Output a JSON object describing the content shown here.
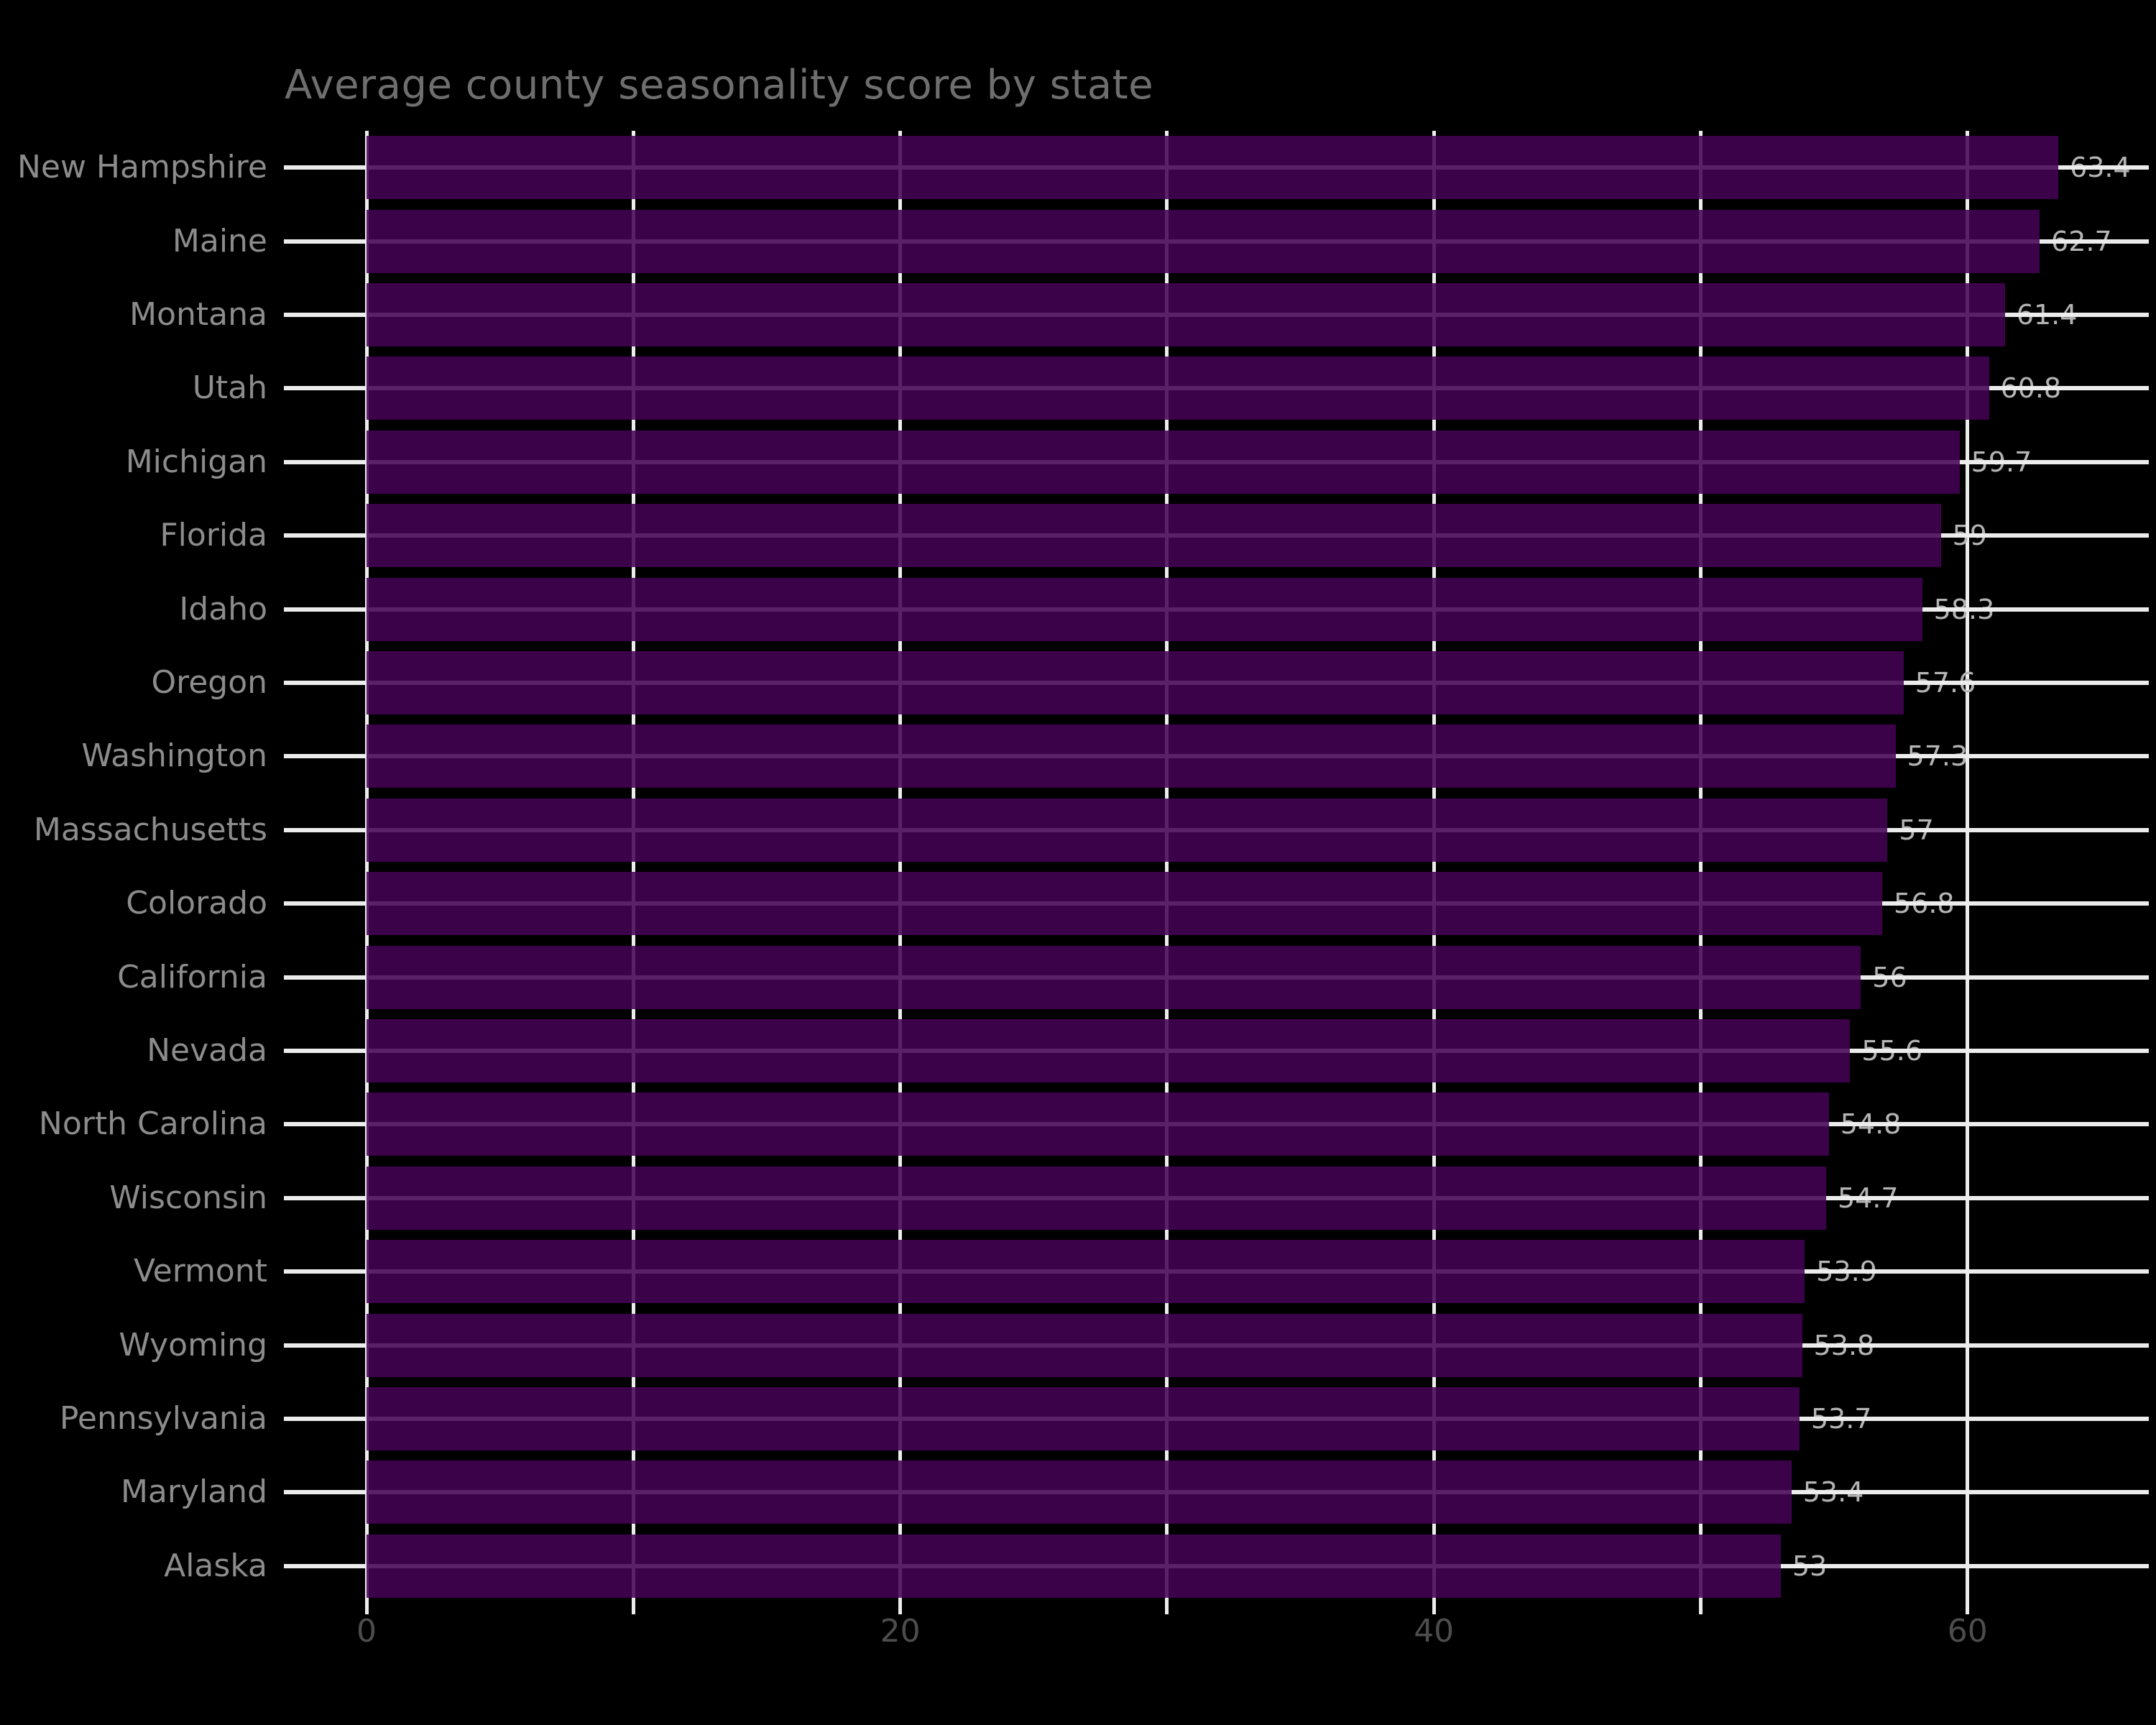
{
  "chart_data": {
    "type": "bar",
    "orientation": "horizontal",
    "title": "Average county seasonality score by state",
    "xlabel": "",
    "ylabel": "",
    "categories": [
      "New Hampshire",
      "Maine",
      "Montana",
      "Utah",
      "Michigan",
      "Florida",
      "Idaho",
      "Oregon",
      "Washington",
      "Massachusetts",
      "Colorado",
      "California",
      "Nevada",
      "North Carolina",
      "Wisconsin",
      "Vermont",
      "Wyoming",
      "Pennsylvania",
      "Maryland",
      "Alaska"
    ],
    "values": [
      63.4,
      62.7,
      61.4,
      60.8,
      59.7,
      59,
      58.3,
      57.6,
      57.3,
      57,
      56.8,
      56,
      55.6,
      54.8,
      54.7,
      53.9,
      53.8,
      53.7,
      53.4,
      53
    ],
    "value_labels": [
      "63.4",
      "62.7",
      "61.4",
      "60.8",
      "59.7",
      "59",
      "58.3",
      "57.6",
      "57.3",
      "57",
      "56.8",
      "56",
      "55.6",
      "54.8",
      "54.7",
      "53.9",
      "53.8",
      "53.7",
      "53.4",
      "53"
    ],
    "xlim": [
      0,
      66.8
    ],
    "xticks": [
      0,
      20,
      40,
      60
    ],
    "xtick_labels": [
      "0",
      "20",
      "40",
      "60"
    ],
    "grid_interval": 10,
    "grid": "on",
    "legend_position": "none",
    "colors": {
      "background": "#000000",
      "bar_fill": "#440154",
      "bar_alpha": 0.87,
      "gridline": "#ececec",
      "title_text": "#6e6e6e",
      "state_label_text": "#8c8c8c",
      "axis_tick_text": "#4d4d4d",
      "value_label_text": "#b4b4b4"
    }
  }
}
